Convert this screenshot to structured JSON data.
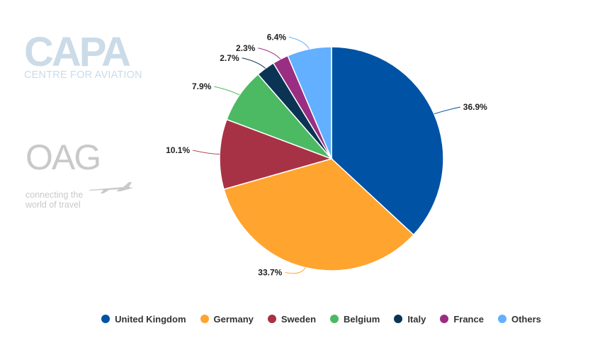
{
  "logos": {
    "capa_word": "CAPA",
    "capa_sub": "CENTRE FOR AVIATION",
    "oag_word": "OAG",
    "oag_tag_line1": "connecting the",
    "oag_tag_line2": "world of travel"
  },
  "chart_data": {
    "type": "pie",
    "categories": [
      "United Kingdom",
      "Germany",
      "Sweden",
      "Belgium",
      "Italy",
      "France",
      "Others"
    ],
    "values": [
      36.9,
      33.7,
      10.1,
      7.9,
      2.7,
      2.3,
      6.4
    ],
    "labels": [
      "36.9%",
      "33.7%",
      "10.1%",
      "7.9%",
      "2.7%",
      "2.3%",
      "6.4%"
    ],
    "colors": [
      "#0052a4",
      "#ffa42e",
      "#a83245",
      "#4cb963",
      "#0b3454",
      "#9a2e82",
      "#62b0ff"
    ],
    "legend_position": "bottom"
  }
}
